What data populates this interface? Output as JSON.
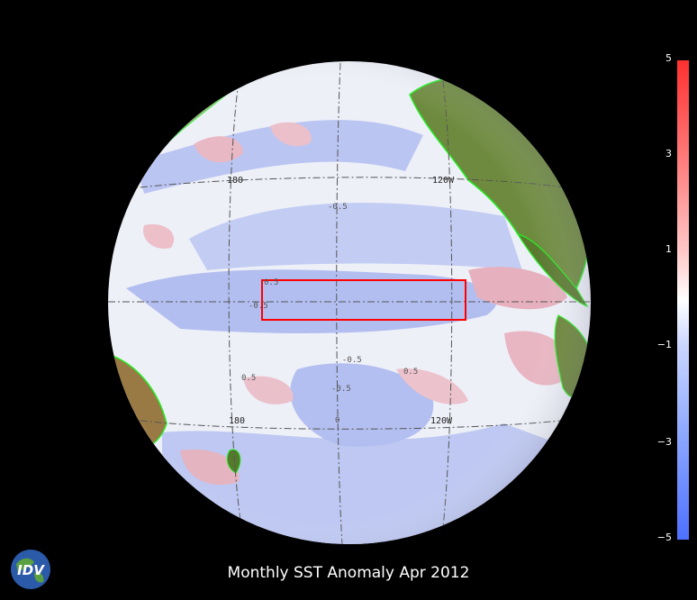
{
  "title": "Monthly SST Anomaly Apr 2012",
  "logo": {
    "text": "IDV"
  },
  "colorbar": {
    "ticks": [
      "5",
      "3",
      "1",
      "−1",
      "−3",
      "−5"
    ],
    "colors": {
      "positive": "#ff3030",
      "neutral": "#ffffff",
      "negative": "#4d70ff"
    }
  },
  "globe": {
    "grid_labels_upper": [
      "180",
      "120W"
    ],
    "grid_labels_lower": [
      "180",
      "120W"
    ],
    "contour_labels": [
      "0.5",
      "-0.5",
      "-0.5",
      "-0.5",
      "0.5",
      "-0.5",
      "0.5",
      "0"
    ],
    "colors": {
      "coastline": "#22ee22",
      "region_box": "#ff0000",
      "land": "#5e7a34"
    }
  }
}
